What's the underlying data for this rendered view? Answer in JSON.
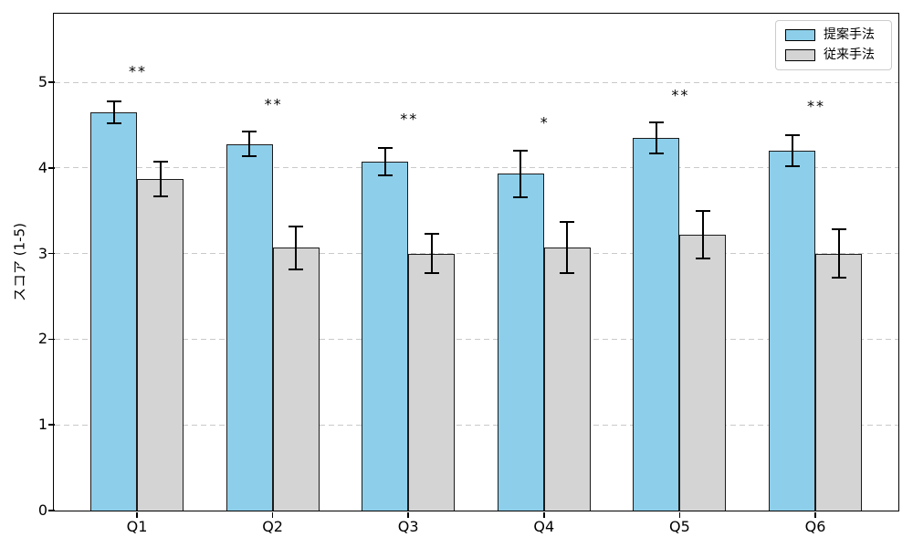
{
  "chart_data": {
    "type": "bar",
    "title": "",
    "xlabel": "",
    "ylabel": "スコア (1-5)",
    "categories": [
      "Q1",
      "Q2",
      "Q3",
      "Q4",
      "Q5",
      "Q6"
    ],
    "series": [
      {
        "name": "提案手法",
        "color": "#8DCFEA",
        "values": [
          4.65,
          4.28,
          4.07,
          3.93,
          4.35,
          4.2
        ],
        "errors": [
          0.13,
          0.14,
          0.16,
          0.27,
          0.18,
          0.18
        ]
      },
      {
        "name": "従来手法",
        "color": "#D4D4D4",
        "values": [
          3.87,
          3.07,
          3.0,
          3.07,
          3.22,
          3.0
        ],
        "errors": [
          0.2,
          0.25,
          0.23,
          0.3,
          0.28,
          0.28
        ]
      }
    ],
    "significance_markers": [
      "**",
      "**",
      "**",
      "*",
      "**",
      "**"
    ],
    "significance_y": [
      5.16,
      4.78,
      4.61,
      4.56,
      4.88,
      4.75
    ],
    "ylim": [
      0,
      5.8
    ],
    "yticks": [
      0,
      1,
      2,
      3,
      4,
      5
    ],
    "grid": "horizontal-dashed",
    "grid_color": "#c9c9c9",
    "legend_position": "upper-right",
    "error_bar_color": "#000000",
    "bar_edge_color": "#1b1b1b"
  }
}
